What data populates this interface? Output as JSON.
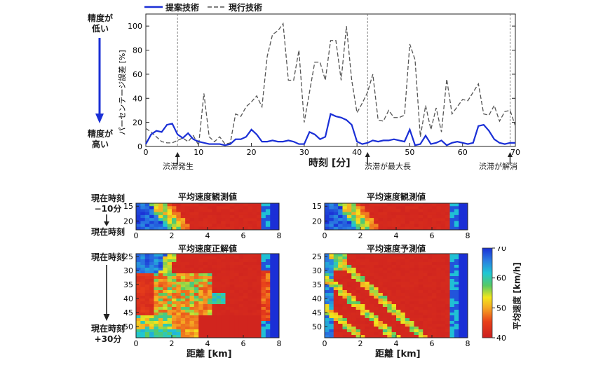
{
  "line_chart": {
    "legend": {
      "proposed": "提案技術",
      "current": "現行技術"
    },
    "left_top": [
      "精度が",
      "低い"
    ],
    "left_bottom": [
      "精度が",
      "高い"
    ],
    "events": [
      "渋滞発生",
      "渋滞が最大長",
      "渋滞が解消"
    ]
  },
  "heatmaps": {
    "past_label_top": [
      "現在時刻",
      "−10分"
    ],
    "past_label_bottom": "現在時刻",
    "future_label_top": "現在時刻",
    "future_label_bottom": [
      "現在時刻",
      "+30分"
    ],
    "titles": [
      "平均速度観測値",
      "平均速度観測値",
      "平均速度正解値",
      "平均速度予測値"
    ],
    "colorbar_label": "平均速度 [km/h]",
    "xlabel": "距離 [km]"
  },
  "colors": {
    "proposed": "#1a2fd6",
    "current": "#555555"
  },
  "chart_data": [
    {
      "type": "line",
      "title": "",
      "xlabel": "時刻 [分]",
      "ylabel": "パーセンテージ誤差 [%]",
      "xlim": [
        0,
        70
      ],
      "ylim": [
        0,
        110
      ],
      "xticks": [
        0,
        10,
        20,
        30,
        40,
        50,
        60,
        70
      ],
      "yticks": [
        0,
        20,
        40,
        60,
        80,
        100
      ],
      "event_times": [
        6,
        42,
        69
      ],
      "x": [
        0,
        1,
        2,
        3,
        4,
        5,
        6,
        7,
        8,
        9,
        10,
        11,
        12,
        13,
        14,
        15,
        16,
        17,
        18,
        19,
        20,
        21,
        22,
        23,
        24,
        25,
        26,
        27,
        28,
        29,
        30,
        31,
        32,
        33,
        34,
        35,
        36,
        37,
        38,
        39,
        40,
        41,
        42,
        43,
        44,
        45,
        46,
        47,
        48,
        49,
        50,
        51,
        52,
        53,
        54,
        55,
        56,
        57,
        58,
        59,
        60,
        61,
        62,
        63,
        64,
        65,
        66,
        67,
        68,
        69,
        70
      ],
      "series": [
        {
          "name": "提案技術",
          "values": [
            2,
            10,
            13,
            12,
            18,
            19,
            10,
            7,
            11,
            6,
            4,
            3,
            2,
            2,
            2,
            1,
            2,
            6,
            6,
            8,
            14,
            10,
            4,
            4,
            5,
            4,
            4,
            5,
            4,
            2,
            2,
            12,
            10,
            6,
            8,
            27,
            25,
            24,
            22,
            18,
            4,
            2,
            3,
            5,
            4,
            5,
            5,
            6,
            5,
            4,
            14,
            1,
            2,
            9,
            2,
            3,
            5,
            1,
            3,
            4,
            3,
            2,
            3,
            17,
            18,
            13,
            6,
            3,
            2,
            3,
            3
          ]
        },
        {
          "name": "現行技術",
          "values": [
            15,
            12,
            8,
            4,
            3,
            3,
            5,
            7,
            4,
            9,
            1,
            44,
            8,
            4,
            8,
            2,
            3,
            27,
            25,
            33,
            37,
            42,
            33,
            75,
            93,
            96,
            102,
            55,
            55,
            80,
            20,
            45,
            70,
            70,
            55,
            88,
            88,
            55,
            100,
            55,
            28,
            36,
            45,
            60,
            22,
            21,
            30,
            24,
            24,
            26,
            85,
            72,
            8,
            34,
            14,
            32,
            12,
            56,
            27,
            33,
            39,
            38,
            45,
            52,
            27,
            26,
            34,
            21,
            29,
            30,
            17
          ]
        }
      ]
    },
    {
      "type": "heatmap",
      "title": "平均速度観測値",
      "xlabel": "",
      "ylabel": "",
      "xlim": [
        0,
        8
      ],
      "ylim": [
        14,
        23
      ],
      "xticks": [
        0,
        2,
        4,
        6,
        8
      ],
      "yticks": [
        15,
        20
      ],
      "kind": "observed_past",
      "t0": 14,
      "t1": 23,
      "nx": 32,
      "ny": 9,
      "value_range": [
        40,
        70
      ],
      "units": "km/h"
    },
    {
      "type": "heatmap",
      "title": "平均速度観測値",
      "xlabel": "",
      "ylabel": "",
      "xlim": [
        0,
        8
      ],
      "ylim": [
        14,
        23
      ],
      "xticks": [
        0,
        2,
        4,
        6,
        8
      ],
      "yticks": [
        15,
        20
      ],
      "kind": "observed_past_b",
      "t0": 14,
      "t1": 23,
      "nx": 32,
      "ny": 9,
      "value_range": [
        40,
        70
      ],
      "units": "km/h"
    },
    {
      "type": "heatmap",
      "title": "平均速度正解値",
      "xlabel": "距離 [km]",
      "ylabel": "",
      "xlim": [
        0,
        8
      ],
      "ylim": [
        24,
        54
      ],
      "xticks": [
        0,
        2,
        4,
        6,
        8
      ],
      "yticks": [
        25,
        30,
        35,
        40,
        45,
        50
      ],
      "kind": "truth",
      "t0": 24,
      "t1": 54,
      "nx": 32,
      "ny": 30,
      "value_range": [
        40,
        70
      ],
      "units": "km/h"
    },
    {
      "type": "heatmap",
      "title": "平均速度予測値",
      "xlabel": "距離 [km]",
      "ylabel": "",
      "xlim": [
        0,
        8
      ],
      "ylim": [
        24,
        54
      ],
      "xticks": [
        0,
        2,
        4,
        6,
        8
      ],
      "yticks": [
        25,
        30,
        35,
        40,
        45,
        50
      ],
      "kind": "prediction",
      "t0": 24,
      "t1": 54,
      "nx": 32,
      "ny": 30,
      "value_range": [
        40,
        70
      ],
      "units": "km/h"
    }
  ],
  "colorbar": {
    "ticks": [
      40,
      50,
      60,
      70
    ],
    "min": 40,
    "max": 70
  }
}
